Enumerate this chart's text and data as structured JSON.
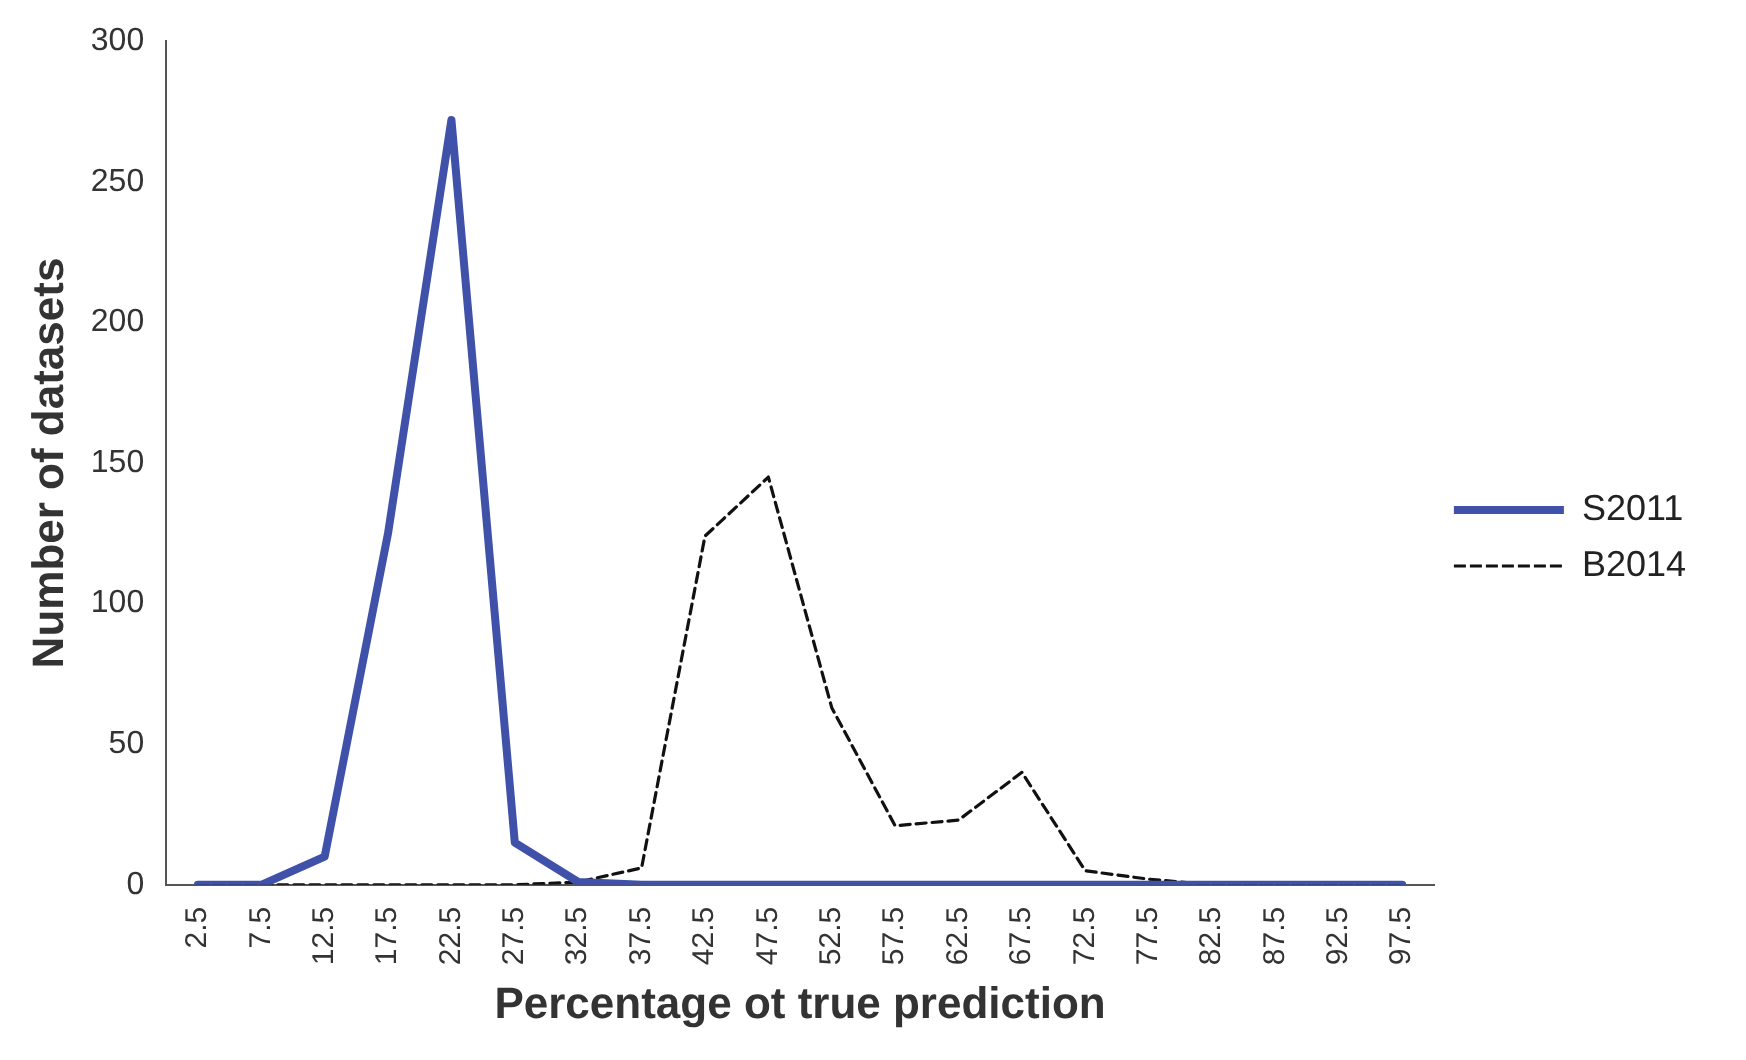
{
  "chart_data": {
    "type": "line",
    "xlabel": "Percentage ot true prediction",
    "ylabel": "Number of datasets",
    "categories": [
      "2.5",
      "7.5",
      "12.5",
      "17.5",
      "22.5",
      "27.5",
      "32.5",
      "37.5",
      "42.5",
      "47.5",
      "52.5",
      "57.5",
      "62.5",
      "67.5",
      "72.5",
      "77.5",
      "82.5",
      "87.5",
      "92.5",
      "97.5"
    ],
    "series": [
      {
        "name": "S2011",
        "color": "#3f51a8",
        "line_style": "solid",
        "values": [
          0,
          0,
          10,
          125,
          272,
          15,
          1,
          0,
          0,
          0,
          0,
          0,
          0,
          0,
          0,
          0,
          0,
          0,
          0,
          0
        ]
      },
      {
        "name": "B2014",
        "color": "#111111",
        "line_style": "dashed",
        "values": [
          0,
          0,
          0,
          0,
          0,
          0,
          1,
          6,
          124,
          145,
          63,
          21,
          23,
          40,
          5,
          2,
          0,
          0,
          0,
          0
        ]
      }
    ],
    "ylim": [
      0,
      300
    ],
    "yticks": [
      0,
      50,
      100,
      150,
      200,
      250,
      300
    ],
    "grid": false,
    "legend": "right",
    "marker": "none"
  }
}
